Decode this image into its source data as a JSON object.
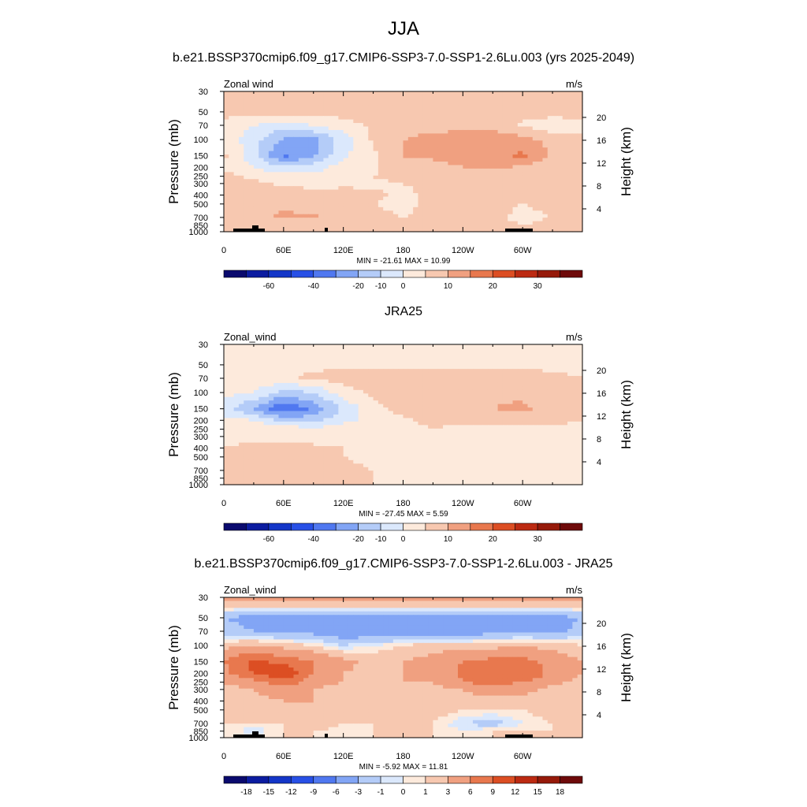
{
  "figure": {
    "title": "JJA"
  },
  "chart_data": [
    {
      "type": "heatmap",
      "title": "b.e21.BSSP370cmip6.f09_g17.CMIP6-SSP3-7.0-SSP1-2.6Lu.003 (yrs 2025-2049)",
      "variable_label": "Zonal wind",
      "units": "m/s",
      "ylabel": "Pressure (mb)",
      "ylabel_right": "Height (km)",
      "x_ticks": [
        "0",
        "60E",
        "120E",
        "180",
        "120W",
        "60W"
      ],
      "y_ticks": [
        "30",
        "50",
        "70",
        "100",
        "150",
        "200",
        "250",
        "300",
        "400",
        "500",
        "700",
        "850",
        "1000"
      ],
      "y_ticks_right": [
        "20",
        "16",
        "12",
        "8",
        "4"
      ],
      "stats": "MIN = -21.61  MAX =  10.99",
      "colorbar": {
        "labels": [
          "-60",
          "-40",
          "-20",
          "-10",
          "0",
          "10",
          "20",
          "30"
        ],
        "colors": [
          "#0a0a6e",
          "#0c1ca0",
          "#1436c8",
          "#2850e6",
          "#5078f0",
          "#82a5f5",
          "#b4ccf8",
          "#dbe8fc",
          "#fdeadc",
          "#f7c8b0",
          "#f0a080",
          "#e8784e",
          "#dc4e23",
          "#bc2a12",
          "#961a0a",
          "#6e0a0a"
        ]
      },
      "field": {
        "lon": [
          0,
          30,
          60,
          90,
          120,
          150,
          180,
          210,
          240,
          270,
          300,
          330,
          360
        ],
        "plev": [
          30,
          50,
          70,
          100,
          150,
          200,
          250,
          300,
          400,
          500,
          700,
          850,
          1000
        ],
        "values": [
          [
            2,
            2,
            2,
            2,
            2,
            2,
            2,
            2,
            2,
            2,
            2,
            2,
            2
          ],
          [
            2,
            2,
            2,
            2,
            2,
            2,
            2,
            2,
            2,
            2,
            2,
            2,
            2
          ],
          [
            -2,
            -5,
            -8,
            -5,
            -2,
            1,
            2,
            3,
            3,
            3,
            -1,
            -3,
            -2
          ],
          [
            -1,
            -8,
            -16,
            -17,
            -8,
            1,
            5,
            7,
            8,
            9,
            7,
            3,
            1
          ],
          [
            1,
            -9,
            -21,
            -16,
            -6,
            -1,
            5,
            6,
            8,
            9,
            11,
            4,
            1
          ],
          [
            -1,
            -5,
            -9,
            -7,
            -3,
            -1,
            4,
            3,
            5,
            6,
            4,
            1,
            0
          ],
          [
            2,
            -1,
            -3,
            -4,
            -2,
            0,
            2,
            1,
            1,
            3,
            0,
            1,
            1
          ],
          [
            1,
            1,
            -1,
            -2,
            -1,
            -1,
            0,
            1,
            2,
            1,
            0,
            0,
            1
          ],
          [
            1,
            3,
            4,
            2,
            2,
            1,
            -1,
            1,
            1,
            0,
            0,
            1,
            1
          ],
          [
            2,
            4,
            4,
            2,
            2,
            0,
            -1,
            1,
            1,
            1,
            0,
            1,
            2
          ],
          [
            1,
            3,
            6,
            6,
            2,
            1,
            0,
            1,
            0,
            1,
            -1,
            0,
            1
          ],
          [
            1,
            2,
            2,
            2,
            0,
            0,
            0,
            1,
            0,
            1,
            0,
            1,
            1
          ],
          [
            1,
            1,
            1,
            1,
            0,
            0,
            0,
            1,
            0,
            0,
            0,
            1,
            1
          ]
        ]
      },
      "levels": [
        -60,
        -50,
        -40,
        -30,
        -20,
        -15,
        -10,
        -5,
        0,
        5,
        10,
        15,
        20,
        25,
        30
      ],
      "topography": true
    },
    {
      "type": "heatmap",
      "title": "JRA25",
      "variable_label": "Zonal_wind",
      "units": "m/s",
      "ylabel": "Pressure (mb)",
      "ylabel_right": "Height (km)",
      "x_ticks": [
        "0",
        "60E",
        "120E",
        "180",
        "120W",
        "60W"
      ],
      "y_ticks": [
        "30",
        "50",
        "70",
        "100",
        "150",
        "200",
        "250",
        "300",
        "400",
        "500",
        "700",
        "850",
        "1000"
      ],
      "y_ticks_right": [
        "20",
        "16",
        "12",
        "8",
        "4"
      ],
      "stats": "MIN = -27.45  MAX =   5.59",
      "colorbar": {
        "labels": [
          "-60",
          "-40",
          "-20",
          "-10",
          "0",
          "10",
          "20",
          "30"
        ],
        "colors": [
          "#0a0a6e",
          "#0c1ca0",
          "#1436c8",
          "#2850e6",
          "#5078f0",
          "#82a5f5",
          "#b4ccf8",
          "#dbe8fc",
          "#fdeadc",
          "#f7c8b0",
          "#f0a080",
          "#e8784e",
          "#dc4e23",
          "#bc2a12",
          "#961a0a",
          "#6e0a0a"
        ]
      },
      "field": {
        "lon": [
          0,
          30,
          60,
          90,
          120,
          150,
          180,
          210,
          240,
          270,
          300,
          330,
          360
        ],
        "plev": [
          30,
          50,
          70,
          100,
          150,
          200,
          250,
          300,
          400,
          500,
          700,
          850,
          1000
        ],
        "values": [
          [
            -3,
            -3,
            -3,
            -3,
            -3,
            -3,
            -3,
            -3,
            -3,
            -3,
            -3,
            -3,
            -3
          ],
          [
            -1,
            -1,
            -1,
            -1,
            -1,
            -1,
            -1,
            -1,
            -1,
            -1,
            -1,
            -1,
            -1
          ],
          [
            -1,
            -1,
            -1,
            1,
            2,
            3,
            3,
            3,
            3,
            3,
            2,
            1,
            0
          ],
          [
            -3,
            -5,
            -12,
            -10,
            -2,
            1,
            4,
            5,
            5,
            4,
            4,
            2,
            0
          ],
          [
            -8,
            -16,
            -25,
            -19,
            -9,
            -2,
            2,
            4,
            5,
            5,
            6,
            3,
            0
          ],
          [
            -3,
            -5,
            -11,
            -12,
            -6,
            -4,
            -1,
            2,
            3,
            3,
            2,
            1,
            0
          ],
          [
            -3,
            -1,
            -2,
            -3,
            -3,
            -3,
            -2,
            0,
            -3,
            -2,
            -1,
            -1,
            -1
          ],
          [
            -3,
            -1,
            -1,
            -2,
            -2,
            -3,
            -2,
            -1,
            -1,
            -1,
            -1,
            -1,
            -1
          ],
          [
            1,
            1,
            1,
            1,
            0,
            -1,
            -1,
            -1,
            -1,
            -1,
            -1,
            -1,
            -1
          ],
          [
            0,
            2,
            2,
            1,
            0,
            -1,
            -1,
            -1,
            -1,
            -1,
            -1,
            -1,
            -1
          ],
          [
            1,
            2,
            3,
            3,
            1,
            0,
            -1,
            -1,
            -1,
            -1,
            -1,
            -1,
            -1
          ],
          [
            1,
            2,
            2,
            2,
            1,
            0,
            -1,
            -1,
            -1,
            -1,
            -1,
            -1,
            -1
          ],
          [
            1,
            1,
            1,
            1,
            0,
            0,
            -1,
            -1,
            -1,
            -1,
            -1,
            -1,
            -1
          ]
        ]
      },
      "levels": [
        -60,
        -50,
        -40,
        -30,
        -20,
        -15,
        -10,
        -5,
        0,
        5,
        10,
        15,
        20,
        25,
        30
      ],
      "topography": false
    },
    {
      "type": "heatmap",
      "title": "b.e21.BSSP370cmip6.f09_g17.CMIP6-SSP3-7.0-SSP1-2.6Lu.003 - JRA25",
      "variable_label": "Zonal_wind",
      "units": "m/s",
      "ylabel": "Pressure (mb)",
      "ylabel_right": "Height (km)",
      "x_ticks": [
        "0",
        "60E",
        "120E",
        "180",
        "120W",
        "60W"
      ],
      "y_ticks": [
        "30",
        "50",
        "70",
        "100",
        "150",
        "200",
        "250",
        "300",
        "400",
        "500",
        "700",
        "850",
        "1000"
      ],
      "y_ticks_right": [
        "20",
        "16",
        "12",
        "8",
        "4"
      ],
      "stats": "MIN =  -5.92  MAX =  11.81",
      "colorbar": {
        "labels": [
          "-18",
          "-15",
          "-12",
          "-9",
          "-6",
          "-3",
          "-1",
          "0",
          "1",
          "3",
          "6",
          "9",
          "12",
          "15",
          "18"
        ],
        "colors": [
          "#0a0a6e",
          "#0c1ca0",
          "#1436c8",
          "#2850e6",
          "#5078f0",
          "#82a5f5",
          "#b4ccf8",
          "#dbe8fc",
          "#fdeadc",
          "#f7c8b0",
          "#f0a080",
          "#e8784e",
          "#dc4e23",
          "#bc2a12",
          "#961a0a",
          "#6e0a0a"
        ]
      },
      "field": {
        "lon": [
          0,
          30,
          60,
          90,
          120,
          150,
          180,
          210,
          240,
          270,
          300,
          330,
          360
        ],
        "plev": [
          30,
          50,
          70,
          100,
          150,
          200,
          250,
          300,
          400,
          500,
          700,
          850,
          1000
        ],
        "values": [
          [
            5,
            5,
            5,
            5,
            5,
            5,
            5,
            5,
            5,
            5,
            5,
            5,
            5
          ],
          [
            -3,
            -4,
            -4,
            -4,
            -4,
            -4,
            -4,
            -4,
            -4,
            -4,
            -4,
            -4,
            -3
          ],
          [
            -2,
            -3,
            -4,
            -4,
            -5,
            -5,
            -5,
            -5,
            -5,
            -4,
            -4,
            -4,
            -2
          ],
          [
            2,
            3,
            2,
            1,
            -1,
            0,
            1,
            2,
            2,
            2,
            3,
            2,
            1
          ],
          [
            6,
            10,
            8,
            6,
            4,
            2,
            3,
            4,
            6,
            7,
            7,
            5,
            3
          ],
          [
            5,
            9,
            12,
            6,
            3,
            2,
            3,
            3,
            7,
            9,
            9,
            5,
            3
          ],
          [
            3,
            5,
            8,
            4,
            3,
            2,
            3,
            3,
            6,
            7,
            6,
            4,
            2
          ],
          [
            2,
            3,
            5,
            3,
            2,
            2,
            2,
            2,
            3,
            5,
            4,
            2,
            2
          ],
          [
            1,
            2,
            3,
            3,
            1,
            1,
            1,
            2,
            2,
            2,
            2,
            2,
            1
          ],
          [
            1,
            2,
            1,
            1,
            1,
            1,
            2,
            2,
            1,
            1,
            1,
            2,
            1
          ],
          [
            1,
            1,
            1,
            3,
            1,
            1,
            2,
            1,
            -1,
            -2,
            0,
            1,
            1
          ],
          [
            1,
            -1,
            1,
            1,
            0,
            1,
            1,
            1,
            0,
            1,
            1,
            1,
            1
          ],
          [
            1,
            1,
            1,
            1,
            1,
            1,
            1,
            1,
            1,
            1,
            1,
            1,
            1
          ]
        ]
      },
      "levels": [
        -18,
        -15,
        -12,
        -9,
        -6,
        -3,
        -1,
        0,
        1,
        3,
        6,
        9,
        12,
        15,
        18
      ],
      "topography": true
    }
  ]
}
